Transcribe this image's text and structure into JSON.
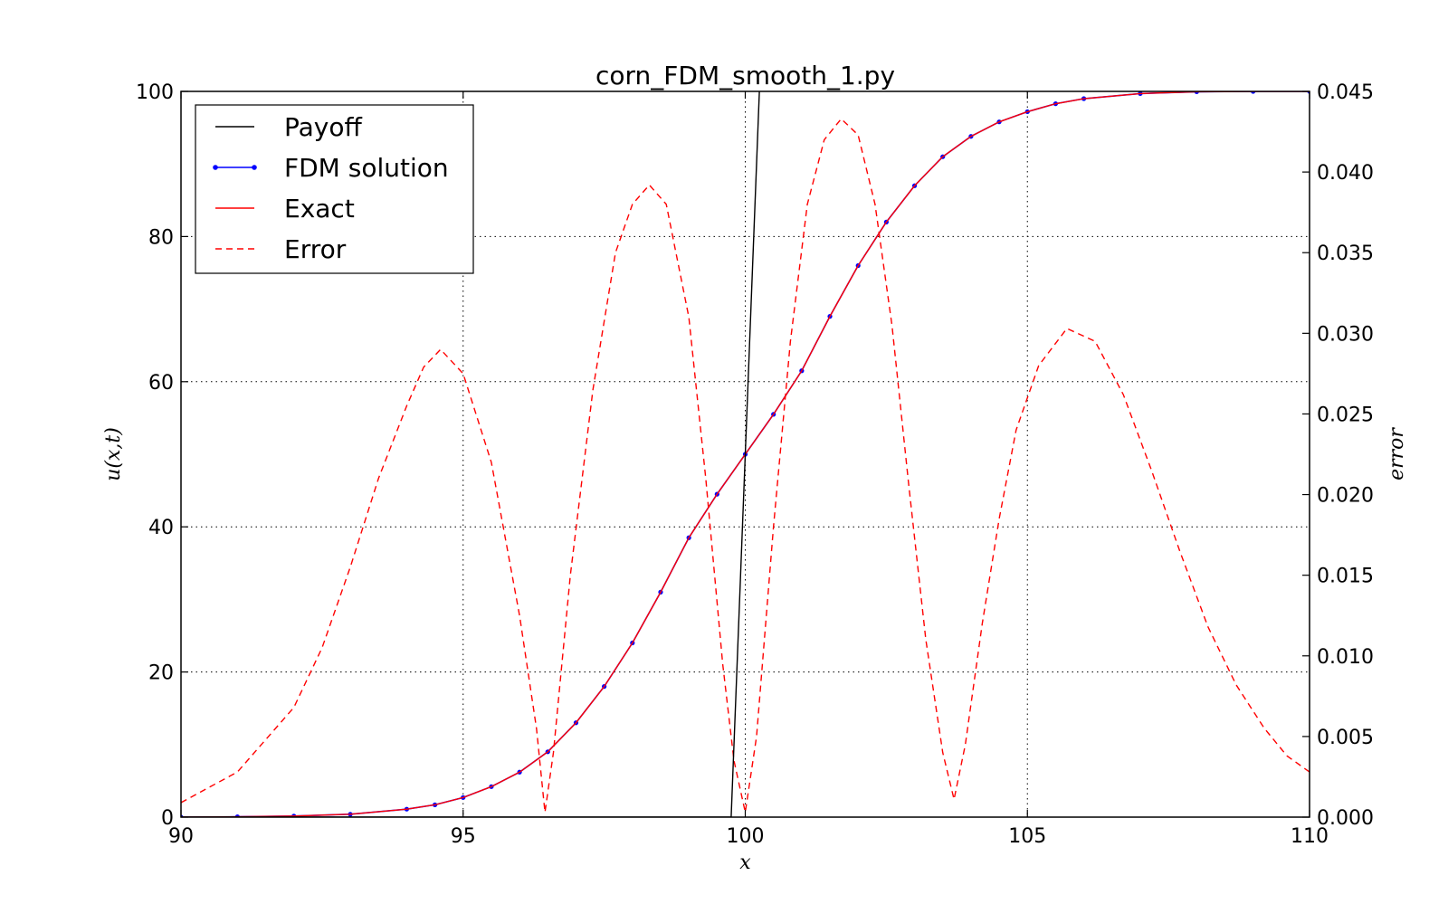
{
  "chart_data": {
    "type": "line",
    "title": "corn_FDM_smooth_1.py",
    "xlabel": "x",
    "ylabel": "u(x,t)",
    "y2label": "error",
    "xlim": [
      90,
      110
    ],
    "ylim": [
      0,
      100
    ],
    "y2lim": [
      0,
      0.045
    ],
    "xticks": [
      "90",
      "95",
      "100",
      "105",
      "110"
    ],
    "yticks": [
      "0",
      "20",
      "40",
      "60",
      "80",
      "100"
    ],
    "y2ticks": [
      "0.000",
      "0.005",
      "0.010",
      "0.015",
      "0.020",
      "0.025",
      "0.030",
      "0.035",
      "0.040",
      "0.045"
    ],
    "grid": true,
    "legend_position": "top-left",
    "series": [
      {
        "name": "Payoff",
        "axis": "left",
        "style": "solid",
        "color": "#000000",
        "x": [
          90,
          99.75,
          100.25
        ],
        "y": [
          0,
          0,
          100
        ]
      },
      {
        "name": "FDM solution",
        "axis": "left",
        "style": "solid-dots",
        "color": "#0000ff",
        "x": [
          90,
          91,
          92,
          93,
          94,
          94.5,
          95,
          95.5,
          96,
          96.5,
          97,
          97.5,
          98,
          98.5,
          99,
          99.5,
          100,
          100.5,
          101,
          101.5,
          102,
          102.5,
          103,
          103.5,
          104,
          104.5,
          105,
          105.5,
          106,
          107,
          108,
          109,
          110
        ],
        "y": [
          0,
          0.05,
          0.15,
          0.4,
          1.1,
          1.7,
          2.7,
          4.2,
          6.2,
          9,
          13,
          18,
          24,
          31,
          38.5,
          44.5,
          50,
          55.5,
          61.5,
          69,
          76,
          82,
          87,
          91,
          93.8,
          95.8,
          97.2,
          98.3,
          99,
          99.7,
          99.95,
          100,
          100
        ]
      },
      {
        "name": "Exact",
        "axis": "left",
        "style": "solid",
        "color": "#ff0000",
        "x": [
          90,
          91,
          92,
          93,
          94,
          94.5,
          95,
          95.5,
          96,
          96.5,
          97,
          97.5,
          98,
          98.5,
          99,
          99.5,
          100,
          100.5,
          101,
          101.5,
          102,
          102.5,
          103,
          103.5,
          104,
          104.5,
          105,
          105.5,
          106,
          107,
          108,
          109,
          110
        ],
        "y": [
          0,
          0.05,
          0.15,
          0.4,
          1.1,
          1.7,
          2.7,
          4.2,
          6.2,
          9,
          13,
          18,
          24,
          31,
          38.5,
          44.5,
          50,
          55.5,
          61.5,
          69,
          76,
          82,
          87,
          91,
          93.8,
          95.8,
          97.2,
          98.3,
          99,
          99.7,
          99.95,
          100,
          100
        ]
      },
      {
        "name": "Error",
        "axis": "right",
        "style": "dashed",
        "color": "#ff0000",
        "x": [
          90,
          91,
          92,
          92.5,
          93,
          93.5,
          94,
          94.3,
          94.6,
          95,
          95.5,
          96,
          96.3,
          96.45,
          96.6,
          96.9,
          97.3,
          97.7,
          98.0,
          98.3,
          98.6,
          99.0,
          99.3,
          99.6,
          99.8,
          100.0,
          100.2,
          100.5,
          100.8,
          101.1,
          101.4,
          101.7,
          102.0,
          102.3,
          102.6,
          102.9,
          103.2,
          103.5,
          103.7,
          103.9,
          104.2,
          104.5,
          104.8,
          105.2,
          105.7,
          106.2,
          106.7,
          107.2,
          107.7,
          108.2,
          108.7,
          109.2,
          109.6,
          110
        ],
        "y": [
          0.0009,
          0.0028,
          0.0068,
          0.0105,
          0.0155,
          0.021,
          0.0255,
          0.0279,
          0.029,
          0.0275,
          0.022,
          0.0125,
          0.0055,
          0.0003,
          0.004,
          0.015,
          0.0265,
          0.035,
          0.038,
          0.0392,
          0.038,
          0.031,
          0.021,
          0.0095,
          0.0035,
          0.0003,
          0.005,
          0.018,
          0.0295,
          0.038,
          0.042,
          0.0433,
          0.0423,
          0.038,
          0.0305,
          0.0205,
          0.011,
          0.004,
          0.0011,
          0.0045,
          0.012,
          0.0185,
          0.024,
          0.028,
          0.0303,
          0.0295,
          0.0262,
          0.0215,
          0.0165,
          0.0118,
          0.0082,
          0.0055,
          0.0038,
          0.0028
        ]
      }
    ]
  }
}
